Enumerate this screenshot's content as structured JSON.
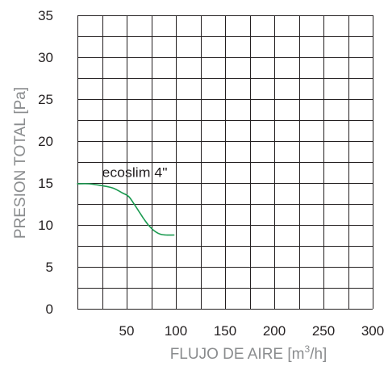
{
  "chart_data": {
    "type": "line",
    "xlabel": "FLUJO DE AIRE [m³/h]",
    "xlabel_parts": {
      "before": "FLUJO DE AIRE [m",
      "sup": "3",
      "after": "/h]"
    },
    "ylabel": "PRESION TOTAL [Pa]",
    "xlim": [
      0,
      300
    ],
    "ylim": [
      0,
      35
    ],
    "x_ticks": [
      50,
      100,
      150,
      200,
      250,
      300
    ],
    "x_tick_labels": [
      "50",
      "100",
      "150",
      "200",
      "250",
      "300"
    ],
    "y_ticks": [
      0,
      5,
      10,
      15,
      20,
      25,
      30,
      35
    ],
    "y_tick_labels": [
      "0",
      "5",
      "10",
      "15",
      "20",
      "25",
      "30",
      "35"
    ],
    "x_grid_step": 25,
    "y_grid_step": 2.5,
    "grid": true,
    "legend": "none",
    "annotations": [
      {
        "text": "ecoslim 4\"",
        "x": 25,
        "y": 15.7
      }
    ],
    "series": [
      {
        "color": "#1a9a50",
        "x": [
          0,
          12,
          24,
          36,
          46,
          52,
          57,
          62,
          67,
          72,
          78,
          84,
          90,
          98
        ],
        "y": [
          14.9,
          14.9,
          14.7,
          14.4,
          13.8,
          13.4,
          12.6,
          11.7,
          10.8,
          10.0,
          9.3,
          8.9,
          8.8,
          8.8
        ]
      }
    ]
  }
}
